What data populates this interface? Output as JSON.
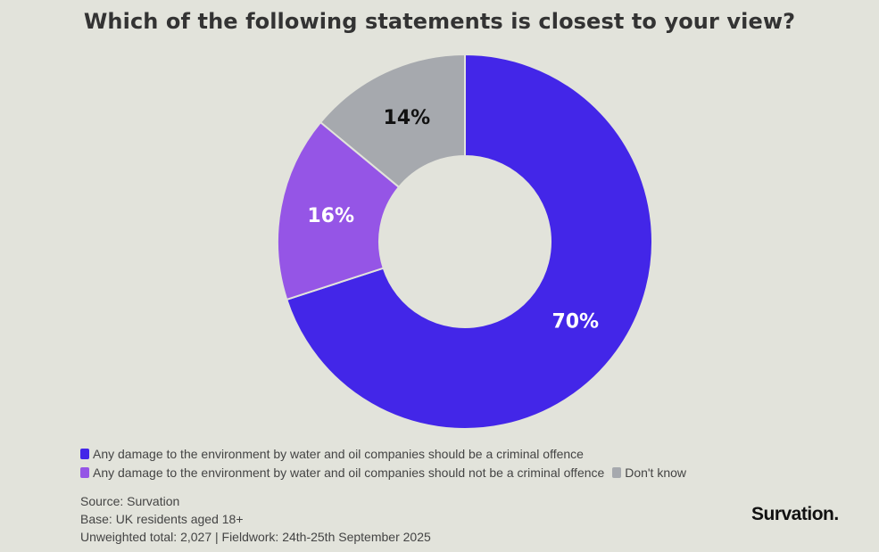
{
  "title": "Which of the following statements is closest to your view?",
  "chart_data": {
    "type": "pie",
    "donut": true,
    "title": "Which of the following statements is closest to your view?",
    "categories": [
      "Any damage to the environment by water and oil companies should be a criminal offence",
      "Any damage to the environment by water and oil companies should not be a criminal offence",
      "Don't know"
    ],
    "values": [
      70,
      16,
      14
    ],
    "value_labels": [
      "70%",
      "16%",
      "14%"
    ],
    "colors": [
      "#4326e8",
      "#9555e6",
      "#a6a9ae"
    ],
    "label_colors": [
      "#ffffff",
      "#ffffff",
      "#111111"
    ],
    "legend_position": "bottom-left"
  },
  "legend": {
    "items": [
      {
        "label": "Any damage to the environment by water and oil companies should be a criminal offence",
        "color": "#4326e8"
      },
      {
        "label": "Any damage to the environment by water and oil companies should not be a criminal offence",
        "color": "#9555e6"
      },
      {
        "label": "Don't know",
        "color": "#a6a9ae"
      }
    ]
  },
  "footer": {
    "source": "Source: Survation",
    "base": "Base: UK residents aged 18+",
    "totals": "Unweighted total: 2,027 | Fieldwork: 24th-25th September 2025"
  },
  "logo": {
    "text": "Survation."
  }
}
